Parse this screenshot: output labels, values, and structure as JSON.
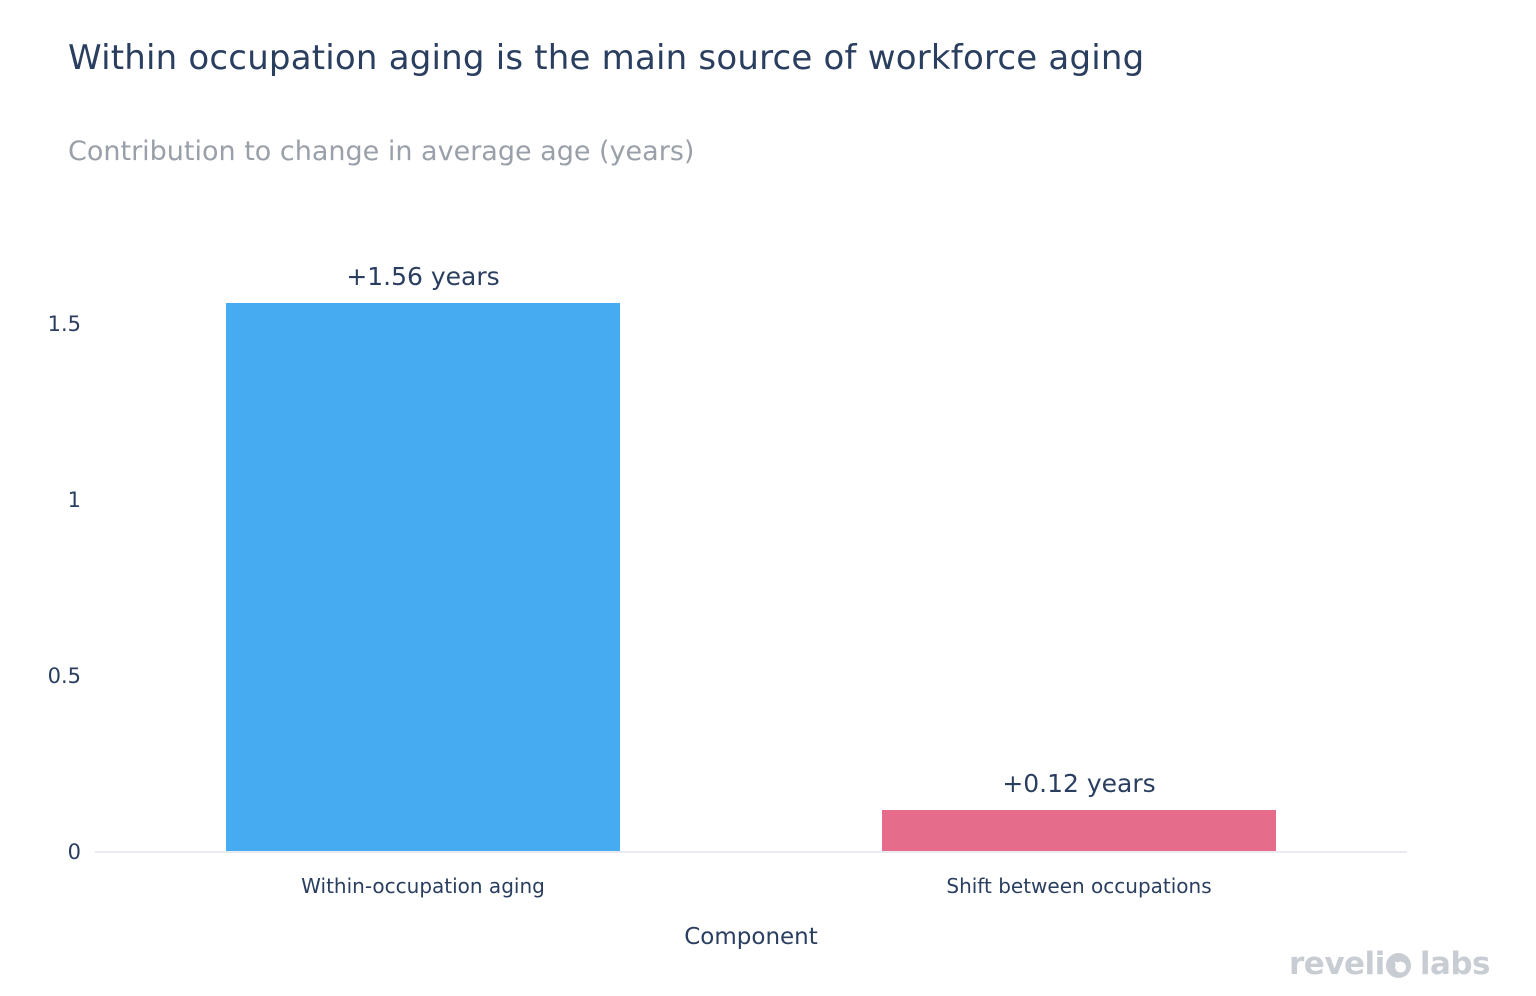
{
  "chart_data": {
    "type": "bar",
    "title": "Within occupation aging is the main source of workforce aging",
    "subtitle": "Contribution to change in average age (years)",
    "categories": [
      "Within-occupation aging",
      "Shift between occupations"
    ],
    "values": [
      1.56,
      0.12
    ],
    "bar_labels": [
      "+1.56 years",
      "+0.12 years"
    ],
    "bar_colors": [
      "#47abf1",
      "#e56c8b"
    ],
    "xlabel": "Component",
    "ylabel": "",
    "ylim": [
      0,
      1.76
    ],
    "yticks": [
      0,
      0.5,
      1,
      1.5
    ],
    "ytick_labels": [
      "0",
      "0.5",
      "1",
      "1.5"
    ],
    "grid": false,
    "legend": false,
    "colors": {
      "text": "#2a3f5f",
      "subtitle": "#9aa0a9",
      "axis_line": "#e9ebf1",
      "background": "#ffffff"
    }
  },
  "footer": {
    "logo": {
      "name": "revelio labs",
      "part1": "reveli",
      "part2": "labs"
    }
  }
}
